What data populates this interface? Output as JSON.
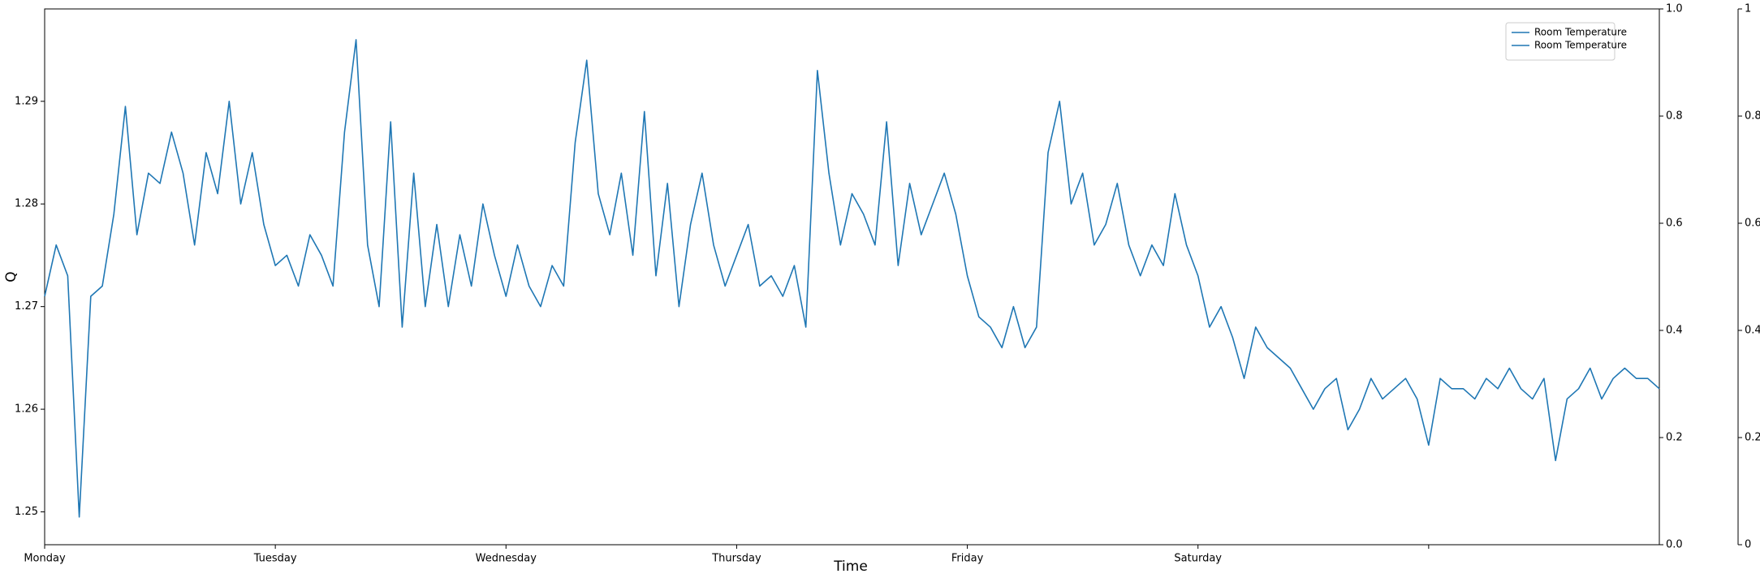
{
  "chart_data": {
    "type": "line",
    "x_label": "Time",
    "y_label": "Q",
    "xlim": [
      0,
      7
    ],
    "xticks": [
      {
        "value": 0,
        "label": "Monday"
      },
      {
        "value": 1,
        "label": "Tuesday"
      },
      {
        "value": 2,
        "label": "Wednesday"
      },
      {
        "value": 3,
        "label": "Thursday"
      },
      {
        "value": 4,
        "label": "Friday"
      },
      {
        "value": 5,
        "label": "Saturday"
      },
      {
        "value": 6,
        "label": null
      }
    ],
    "ylim": [
      1.2468,
      1.299
    ],
    "yticks": [
      1.25,
      1.26,
      1.27,
      1.28,
      1.29
    ],
    "y2lim": [
      0,
      1
    ],
    "y2ticks": [
      {
        "value": 0,
        "label": "0.0"
      },
      0.2,
      0.4,
      0.6,
      0.8,
      {
        "value": 1,
        "label": "1.0"
      }
    ],
    "y3lim": [
      0,
      1
    ],
    "y3ticks": [
      0,
      0.2,
      0.4,
      0.6,
      0.8,
      1
    ],
    "legend": {
      "position": "upper right",
      "entries": [
        {
          "label": "Room Temperature",
          "color": "#1f77b4"
        },
        {
          "label": "Room Temperature",
          "color": "#1f77b4"
        }
      ]
    },
    "x": [
      0,
      0.05,
      0.1,
      0.15,
      0.2,
      0.25,
      0.3,
      0.35,
      0.4,
      0.45,
      0.5,
      0.55,
      0.6,
      0.65,
      0.7,
      0.75,
      0.8,
      0.85,
      0.9,
      0.95,
      1,
      1.05,
      1.1,
      1.15,
      1.2,
      1.25,
      1.3,
      1.35,
      1.4,
      1.45,
      1.5,
      1.55,
      1.6,
      1.65,
      1.7,
      1.75,
      1.8,
      1.85,
      1.9,
      1.95,
      2,
      2.05,
      2.1,
      2.15,
      2.2,
      2.25,
      2.3,
      2.35,
      2.4,
      2.45,
      2.5,
      2.55,
      2.6,
      2.65,
      2.7,
      2.75,
      2.8,
      2.85,
      2.9,
      2.95,
      3,
      3.05,
      3.1,
      3.15,
      3.2,
      3.25,
      3.3,
      3.35,
      3.4,
      3.45,
      3.5,
      3.55,
      3.6,
      3.65,
      3.7,
      3.75,
      3.8,
      3.85,
      3.9,
      3.95,
      4,
      4.05,
      4.1,
      4.15,
      4.2,
      4.25,
      4.3,
      4.35,
      4.4,
      4.45,
      4.5,
      4.55,
      4.6,
      4.65,
      4.7,
      4.75,
      4.8,
      4.85,
      4.9,
      4.95,
      5,
      5.05,
      5.1,
      5.15,
      5.2,
      5.25,
      5.3,
      5.35,
      5.4,
      5.45,
      5.5,
      5.55,
      5.6,
      5.65,
      5.7,
      5.75,
      5.8,
      5.85,
      5.9,
      5.95,
      6,
      6.05,
      6.1,
      6.15,
      6.2,
      6.25,
      6.3,
      6.35,
      6.4,
      6.45,
      6.5,
      6.55,
      6.6,
      6.65,
      6.7,
      6.75,
      6.8,
      6.85,
      6.9,
      6.95,
      7
    ],
    "series": [
      {
        "color": "#1f77b4",
        "values": [
          1.271,
          1.276,
          1.273,
          1.2495,
          1.271,
          1.272,
          1.279,
          1.2895,
          1.277,
          1.283,
          1.282,
          1.287,
          1.283,
          1.276,
          1.285,
          1.281,
          1.29,
          1.28,
          1.285,
          1.278,
          1.274,
          1.275,
          1.272,
          1.277,
          1.275,
          1.272,
          1.287,
          1.296,
          1.276,
          1.27,
          1.288,
          1.268,
          1.283,
          1.27,
          1.278,
          1.27,
          1.277,
          1.272,
          1.28,
          1.275,
          1.271,
          1.276,
          1.272,
          1.27,
          1.274,
          1.272,
          1.286,
          1.294,
          1.281,
          1.277,
          1.283,
          1.275,
          1.289,
          1.273,
          1.282,
          1.27,
          1.278,
          1.283,
          1.276,
          1.272,
          1.275,
          1.278,
          1.272,
          1.273,
          1.271,
          1.274,
          1.268,
          1.293,
          1.283,
          1.276,
          1.281,
          1.279,
          1.276,
          1.288,
          1.274,
          1.282,
          1.277,
          1.28,
          1.283,
          1.279,
          1.273,
          1.269,
          1.268,
          1.266,
          1.27,
          1.266,
          1.268,
          1.285,
          1.29,
          1.28,
          1.283,
          1.276,
          1.278,
          1.282,
          1.276,
          1.273,
          1.276,
          1.274,
          1.281,
          1.276,
          1.273,
          1.268,
          1.27,
          1.267,
          1.263,
          1.268,
          1.266,
          1.265,
          1.264,
          1.262,
          1.26,
          1.262,
          1.263,
          1.258,
          1.26,
          1.263,
          1.261,
          1.262,
          1.263,
          1.261,
          1.2565,
          1.263,
          1.262,
          1.262,
          1.261,
          1.263,
          1.262,
          1.264,
          1.262,
          1.261,
          1.263,
          1.255,
          1.261,
          1.262,
          1.264,
          1.261,
          1.263,
          1.264,
          1.263,
          1.263,
          1.262
        ]
      }
    ]
  }
}
